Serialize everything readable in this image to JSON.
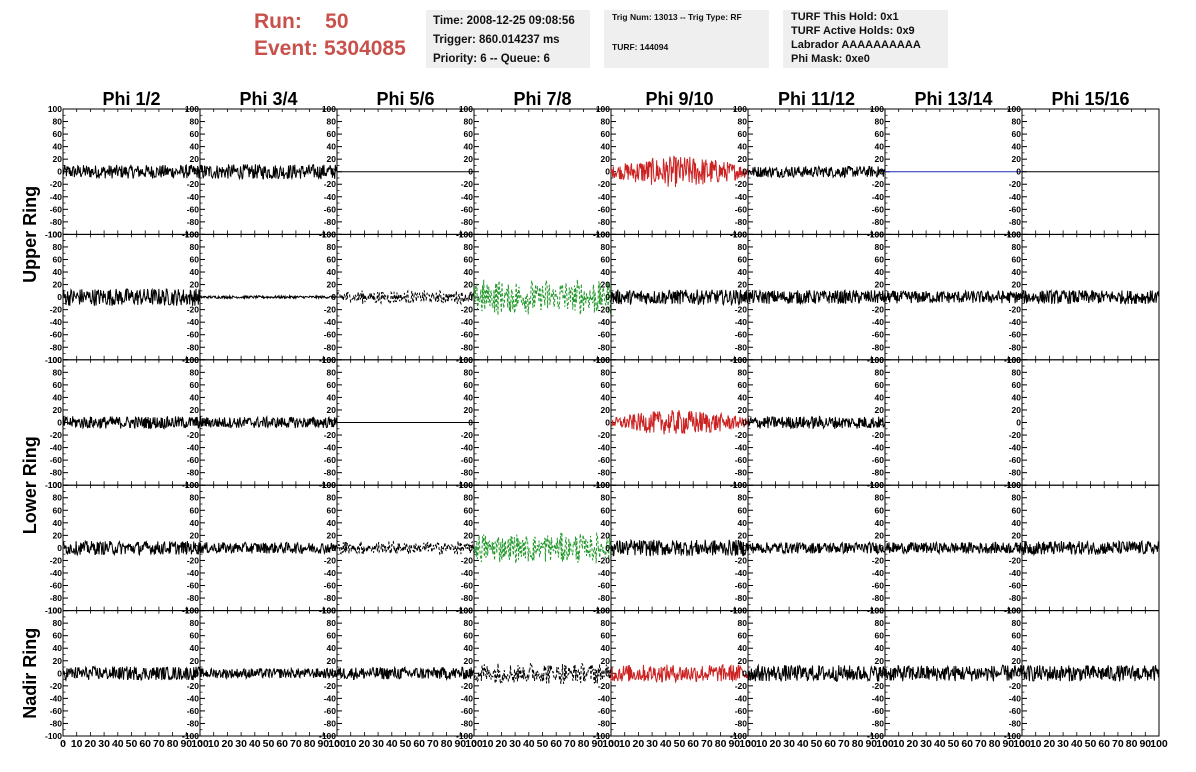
{
  "header": {
    "run_label": "Run:",
    "run_value": "50",
    "event_label": "Event:",
    "event_value": "5304085",
    "time": "Time: 2008-12-25 09:08:56",
    "trigger": "Trigger: 860.014237 ms",
    "priority": "Priority: 6 -- Queue: 6",
    "trig_num": "Trig Num: 13013 -- Trig Type: RF",
    "turf": "TURF: 144094",
    "turf_hold": "TURF This Hold: 0x1",
    "turf_active": "TURF Active Holds: 0x9",
    "labrador": "Labrador AAAAAAAAAA",
    "phi_mask": "Phi Mask: 0xe0",
    "accent_color": "#c9514b"
  },
  "chart_data": {
    "type": "line",
    "columns": [
      "Phi 1/2",
      "Phi 3/4",
      "Phi 5/6",
      "Phi 7/8",
      "Phi 9/10",
      "Phi 11/12",
      "Phi 13/14",
      "Phi 15/16"
    ],
    "ring_labels": [
      {
        "label": "Upper Ring",
        "rows": [
          0,
          1
        ]
      },
      {
        "label": "Lower Ring",
        "rows": [
          2,
          3
        ]
      },
      {
        "label": "Nadir Ring",
        "rows": [
          4
        ]
      }
    ],
    "ylim": [
      -100,
      100
    ],
    "y_ticks": [
      -100,
      -80,
      -60,
      -40,
      -20,
      0,
      20,
      40,
      60,
      80,
      100
    ],
    "xlim": [
      0,
      100
    ],
    "x_ticks": [
      0,
      10,
      20,
      30,
      40,
      50,
      60,
      70,
      80,
      90,
      100
    ],
    "grid": false,
    "colors": {
      "black": "#000000",
      "red": "#cc2222",
      "green": "#22992a",
      "blue": "#1f2fb8"
    },
    "panels": [
      [
        {
          "color": "black",
          "style": "solid",
          "amp": 11
        },
        {
          "color": "black",
          "style": "solid",
          "amp": 12
        },
        {
          "color": "black",
          "style": "flat"
        },
        {
          "color": "black",
          "style": "empty"
        },
        {
          "color": "red",
          "style": "solid",
          "amp": 25,
          "envelope": true
        },
        {
          "color": "black",
          "style": "solid",
          "amp": 9
        },
        {
          "color": "blue",
          "style": "flat"
        },
        {
          "color": "black",
          "style": "flat"
        }
      ],
      [
        {
          "color": "black",
          "style": "solid",
          "amp": 14
        },
        {
          "color": "black",
          "style": "solid",
          "amp": 2
        },
        {
          "color": "black",
          "style": "dashed",
          "amp": 11
        },
        {
          "color": "green",
          "style": "dashed",
          "amp": 30
        },
        {
          "color": "black",
          "style": "solid",
          "amp": 12
        },
        {
          "color": "black",
          "style": "solid",
          "amp": 11
        },
        {
          "color": "black",
          "style": "solid",
          "amp": 10
        },
        {
          "color": "black",
          "style": "solid",
          "amp": 11
        }
      ],
      [
        {
          "color": "black",
          "style": "solid",
          "amp": 10
        },
        {
          "color": "black",
          "style": "solid",
          "amp": 9
        },
        {
          "color": "black",
          "style": "flat"
        },
        {
          "color": "black",
          "style": "empty"
        },
        {
          "color": "red",
          "style": "solid",
          "amp": 20,
          "envelope": true
        },
        {
          "color": "black",
          "style": "solid",
          "amp": 10
        },
        {
          "color": "black",
          "style": "empty"
        },
        {
          "color": "black",
          "style": "empty"
        }
      ],
      [
        {
          "color": "black",
          "style": "solid",
          "amp": 11
        },
        {
          "color": "black",
          "style": "solid",
          "amp": 9
        },
        {
          "color": "black",
          "style": "dashed",
          "amp": 11
        },
        {
          "color": "green",
          "style": "dashed",
          "amp": 25
        },
        {
          "color": "black",
          "style": "solid",
          "amp": 13
        },
        {
          "color": "black",
          "style": "solid",
          "amp": 9
        },
        {
          "color": "black",
          "style": "solid",
          "amp": 9
        },
        {
          "color": "black",
          "style": "solid",
          "amp": 11
        }
      ],
      [
        {
          "color": "black",
          "style": "solid",
          "amp": 11
        },
        {
          "color": "black",
          "style": "solid",
          "amp": 8
        },
        {
          "color": "black",
          "style": "solid",
          "amp": 10
        },
        {
          "color": "black",
          "style": "dashed",
          "amp": 18
        },
        {
          "color": "red",
          "style": "solid",
          "amp": 14
        },
        {
          "color": "black",
          "style": "solid",
          "amp": 13
        },
        {
          "color": "black",
          "style": "solid",
          "amp": 13
        },
        {
          "color": "black",
          "style": "solid",
          "amp": 13
        }
      ]
    ]
  }
}
